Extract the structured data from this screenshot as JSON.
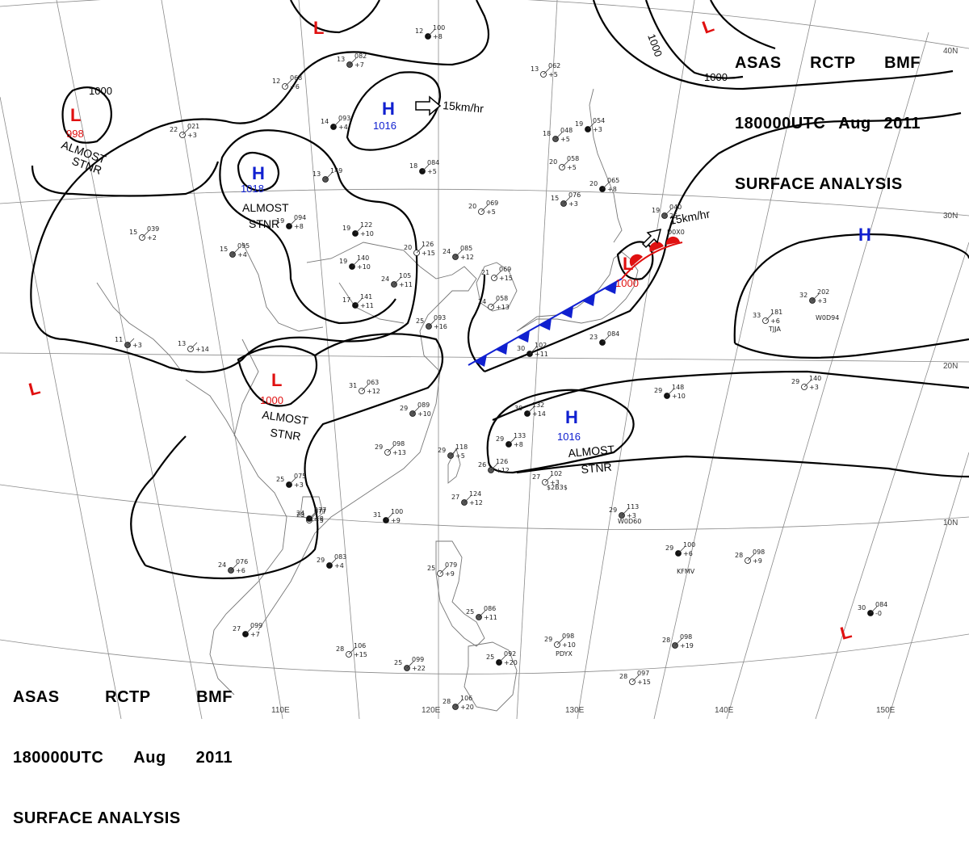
{
  "header": {
    "agency": "ASAS",
    "station": "RCTP",
    "office": "BMF",
    "time": "180000UTC",
    "month": "Aug",
    "year": "2011",
    "product": "SURFACE ANALYSIS"
  },
  "grid_labels": {
    "lon": [
      "110E",
      "120E",
      "130E",
      "140E",
      "150E"
    ],
    "lat": [
      "10N",
      "20N",
      "30N",
      "40N"
    ]
  },
  "pressure_systems": [
    {
      "type": "L",
      "value": "998",
      "color": "#e01010"
    },
    {
      "type": "H",
      "value": "1018",
      "color": "#1020d0"
    },
    {
      "type": "H",
      "value": "1016",
      "color": "#1020d0"
    },
    {
      "type": "L",
      "value": "1000",
      "color": "#e01010"
    },
    {
      "type": "L",
      "value": "1000",
      "color": "#e01010"
    },
    {
      "type": "H",
      "value": "1016",
      "color": "#1020d0"
    },
    {
      "type": "H",
      "value": "",
      "color": "#1020d0"
    },
    {
      "type": "L",
      "value": "",
      "color": "#e01010"
    },
    {
      "type": "L",
      "value": "",
      "color": "#e01010"
    },
    {
      "type": "L",
      "value": "",
      "color": "#e01010"
    },
    {
      "type": "L",
      "value": "",
      "color": "#e01010"
    }
  ],
  "annotations": {
    "stationary": [
      "ALMOST",
      "STNR"
    ],
    "motion_1": "15km/hr",
    "motion_2": "15km/hr"
  },
  "isobar_labels": [
    "1000",
    "1000",
    "1000"
  ],
  "stations": [
    [
      "12",
      "100",
      "+8"
    ],
    [
      "12",
      "068",
      "+6"
    ],
    [
      "13",
      "082",
      "+7"
    ],
    [
      "14",
      "093",
      "+4"
    ],
    [
      "22",
      "021",
      "+3"
    ],
    [
      "13",
      "149",
      ""
    ],
    [
      "18",
      "084",
      "+5"
    ],
    [
      "13",
      "062",
      "+5"
    ],
    [
      "18",
      "048",
      "+5"
    ],
    [
      "19",
      "054",
      "+3"
    ],
    [
      "20",
      "058",
      "+5"
    ],
    [
      "15",
      "076",
      "+3"
    ],
    [
      "20",
      "065",
      "+8"
    ],
    [
      "20",
      "069",
      "+5"
    ],
    [
      "19",
      "040",
      "25"
    ],
    [
      "19",
      "094",
      "+8"
    ],
    [
      "15",
      "039",
      "+2"
    ],
    [
      "15",
      "095",
      "+4"
    ],
    [
      "19",
      "122",
      "+10"
    ],
    [
      "20",
      "126",
      "+15"
    ],
    [
      "24",
      "085",
      "+12"
    ],
    [
      "19",
      "140",
      "+10"
    ],
    [
      "21",
      "069",
      "+15"
    ],
    [
      "24",
      "105",
      "+11"
    ],
    [
      "17",
      "141",
      "+11"
    ],
    [
      "24",
      "058",
      "+13"
    ],
    [
      "25",
      "093",
      "+16"
    ],
    [
      "23",
      "084",
      ""
    ],
    [
      "13",
      "",
      "+14"
    ],
    [
      "11",
      "",
      "+3"
    ],
    [
      "30",
      "102",
      "+11"
    ],
    [
      "31",
      "063",
      "+12"
    ],
    [
      "29",
      "089",
      "+10"
    ],
    [
      "30",
      "132",
      "+14"
    ],
    [
      "29",
      "098",
      "+13"
    ],
    [
      "29",
      "118",
      "+5"
    ],
    [
      "29",
      "133",
      "+8"
    ],
    [
      "27",
      "102",
      "+3"
    ],
    [
      "26",
      "126",
      "+12"
    ],
    [
      "25",
      "075",
      "+3"
    ],
    [
      "23",
      "077",
      "+5"
    ],
    [
      "27",
      "124",
      "+12"
    ],
    [
      "31",
      "100",
      "+9"
    ],
    [
      "33",
      "181",
      "+6"
    ],
    [
      "32",
      "202",
      "+3"
    ],
    [
      "29",
      "148",
      "+10"
    ],
    [
      "29",
      "140",
      "+3"
    ],
    [
      "29",
      "113",
      "+3"
    ],
    [
      "29",
      "100",
      "+6"
    ],
    [
      "28",
      "098",
      "+9"
    ],
    [
      "24",
      "076",
      "+6"
    ],
    [
      "29",
      "083",
      "+4"
    ],
    [
      "25",
      "079",
      "+9"
    ],
    [
      "25",
      "086",
      "+11"
    ],
    [
      "27",
      "099",
      "+7"
    ],
    [
      "28",
      "106",
      "+15"
    ],
    [
      "25",
      "099",
      "+22"
    ],
    [
      "25",
      "092",
      "+20"
    ],
    [
      "29",
      "098",
      "+10"
    ],
    [
      "28",
      "098",
      "+19"
    ],
    [
      "30",
      "084",
      "-0"
    ],
    [
      "28",
      "097",
      "+15"
    ],
    [
      "28",
      "106",
      "+20"
    ],
    [
      "24",
      "077",
      "+8"
    ]
  ],
  "station_ids": [
    "TJJA",
    "W0D94",
    "W0D60",
    "KFMV",
    "PDYX",
    "$2B3$",
    "D0X0"
  ],
  "colors": {
    "isobar": "#000000",
    "coast": "#777777",
    "grid": "#8a8a8a",
    "high": "#1020d0",
    "low": "#e01010",
    "cold_front": "#1020d0",
    "warm_front": "#e01010"
  }
}
